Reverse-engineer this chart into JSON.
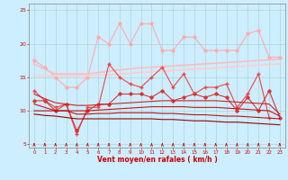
{
  "xlabel": "Vent moyen/en rafales ( km/h )",
  "x": [
    0,
    1,
    2,
    3,
    4,
    5,
    6,
    7,
    8,
    9,
    10,
    11,
    12,
    13,
    14,
    15,
    16,
    17,
    18,
    19,
    20,
    21,
    22,
    23
  ],
  "series": [
    {
      "color": "#ffaaaa",
      "lw": 0.8,
      "marker": "D",
      "ms": 1.8,
      "data": [
        17.5,
        16.5,
        15.0,
        13.5,
        13.5,
        15.0,
        21.0,
        20.0,
        23.0,
        20.0,
        23.0,
        23.0,
        19.0,
        19.0,
        21.0,
        21.0,
        19.0,
        19.0,
        19.0,
        19.0,
        21.5,
        22.0,
        18.0,
        18.0
      ]
    },
    {
      "color": "#ffbbbb",
      "lw": 1.2,
      "marker": null,
      "ms": 0,
      "data": [
        17.0,
        16.2,
        15.5,
        15.5,
        15.5,
        15.5,
        15.7,
        15.9,
        16.1,
        16.3,
        16.4,
        16.5,
        16.6,
        16.7,
        16.8,
        16.9,
        17.0,
        17.1,
        17.2,
        17.3,
        17.4,
        17.5,
        17.6,
        17.7
      ]
    },
    {
      "color": "#ffcccc",
      "lw": 1.2,
      "marker": null,
      "ms": 0,
      "data": [
        15.2,
        15.2,
        15.2,
        15.2,
        15.2,
        15.2,
        15.3,
        15.4,
        15.5,
        15.6,
        15.7,
        15.8,
        15.9,
        16.0,
        16.1,
        16.2,
        16.3,
        16.4,
        16.5,
        16.6,
        16.7,
        16.8,
        16.9,
        17.0
      ]
    },
    {
      "color": "#ee4444",
      "lw": 0.8,
      "marker": "+",
      "ms": 3.5,
      "data": [
        13.0,
        11.5,
        10.5,
        11.0,
        6.5,
        10.5,
        10.5,
        17.0,
        15.0,
        14.0,
        13.5,
        15.0,
        16.5,
        13.5,
        15.5,
        12.5,
        13.5,
        13.5,
        14.0,
        10.5,
        12.5,
        15.5,
        9.0,
        null
      ]
    },
    {
      "color": "#dd3333",
      "lw": 0.8,
      "marker": "D",
      "ms": 1.8,
      "data": [
        11.5,
        11.5,
        10.0,
        11.0,
        7.0,
        10.0,
        11.0,
        11.0,
        12.5,
        12.5,
        12.5,
        12.0,
        13.0,
        11.5,
        12.0,
        12.5,
        12.0,
        12.5,
        12.0,
        10.0,
        12.0,
        10.0,
        13.0,
        9.0
      ]
    },
    {
      "color": "#cc2222",
      "lw": 0.8,
      "marker": null,
      "ms": 0,
      "data": [
        12.5,
        11.8,
        11.2,
        11.0,
        10.8,
        10.8,
        10.9,
        11.0,
        11.1,
        11.2,
        11.3,
        11.4,
        11.5,
        11.5,
        11.5,
        11.5,
        11.5,
        11.5,
        11.4,
        11.3,
        11.2,
        11.1,
        11.0,
        9.5
      ]
    },
    {
      "color": "#cc1111",
      "lw": 0.8,
      "marker": null,
      "ms": 0,
      "data": [
        11.0,
        10.5,
        10.0,
        10.0,
        10.0,
        10.0,
        10.1,
        10.2,
        10.3,
        10.4,
        10.5,
        10.6,
        10.6,
        10.6,
        10.6,
        10.5,
        10.5,
        10.5,
        10.4,
        10.3,
        10.2,
        10.1,
        10.0,
        9.2
      ]
    },
    {
      "color": "#bb1111",
      "lw": 0.8,
      "marker": null,
      "ms": 0,
      "data": [
        10.0,
        10.0,
        10.0,
        10.0,
        9.5,
        9.5,
        9.6,
        9.6,
        9.7,
        9.7,
        9.7,
        9.7,
        9.6,
        9.6,
        9.5,
        9.4,
        9.4,
        9.3,
        9.2,
        9.2,
        9.1,
        9.0,
        8.9,
        8.8
      ]
    },
    {
      "color": "#990000",
      "lw": 0.8,
      "marker": null,
      "ms": 0,
      "data": [
        9.5,
        9.3,
        9.2,
        9.0,
        8.8,
        8.8,
        8.8,
        8.8,
        8.8,
        8.8,
        8.8,
        8.8,
        8.7,
        8.7,
        8.6,
        8.5,
        8.5,
        8.4,
        8.3,
        8.3,
        8.2,
        8.1,
        8.0,
        7.9
      ]
    }
  ],
  "ylim": [
    4.5,
    26
  ],
  "yticks": [
    5,
    10,
    15,
    20,
    25
  ],
  "xticks": [
    0,
    1,
    2,
    3,
    4,
    5,
    6,
    7,
    8,
    9,
    10,
    11,
    12,
    13,
    14,
    15,
    16,
    17,
    18,
    19,
    20,
    21,
    22,
    23
  ],
  "bg_color": "#cceeff",
  "grid_color": "#aacccc",
  "tick_color": "#cc0000",
  "label_color": "#cc0000"
}
